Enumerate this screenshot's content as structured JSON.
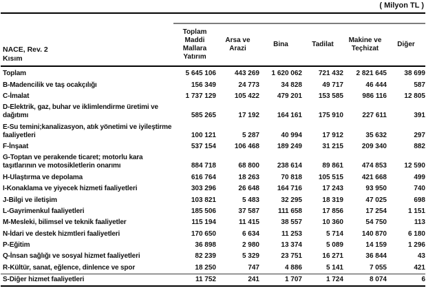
{
  "unit_label": "( Milyon TL )",
  "table": {
    "row_header": {
      "line1": "NACE, Rev. 2",
      "line2": "Kısım"
    },
    "columns": [
      "Toplam Maddi Mallara Yatırım",
      "Arsa ve Arazi",
      "Bina",
      "Tadilat",
      "Makine ve Teçhizat",
      "Diğer"
    ],
    "rows": [
      {
        "label": "Toplam",
        "values": [
          "5 645 106",
          "443 269",
          "1 620 062",
          "721 432",
          "2 821 645",
          "38 699"
        ]
      },
      {
        "label": "B-Madencilik ve taş ocakçılığı",
        "values": [
          "156 349",
          "24 773",
          "34 828",
          "49 717",
          "46 444",
          "587"
        ]
      },
      {
        "label": "C-İmalat",
        "values": [
          "1 737 129",
          "105 422",
          "479 201",
          "153 585",
          "986 116",
          "12 805"
        ]
      },
      {
        "label": "D-Elektrik, gaz, buhar ve iklimlendirme üretimi ve dağıtımı",
        "values": [
          "585 265",
          "17 192",
          "164 161",
          "175 910",
          "227 611",
          "391"
        ]
      },
      {
        "label": "E-Su temini;kanalizasyon, atık yönetimi ve iyileştirme faaliyetleri",
        "values": [
          "100 121",
          "5 287",
          "40 994",
          "17 912",
          "35 632",
          "297"
        ]
      },
      {
        "label": "F-İnşaat",
        "values": [
          "537 154",
          "106 468",
          "189 249",
          "31 215",
          "209 340",
          "882"
        ]
      },
      {
        "label": "G-Toptan ve perakende ticaret; motorlu kara taşıtlarının ve motosikletlerin onarımı",
        "values": [
          "884 718",
          "68 800",
          "238 614",
          "89 861",
          "474 853",
          "12 590"
        ]
      },
      {
        "label": "H-Ulaştırma ve depolama",
        "values": [
          "616 764",
          "18 263",
          "70 818",
          "105 515",
          "421 668",
          "499"
        ]
      },
      {
        "label": "I-Konaklama ve yiyecek hizmeti faaliyetleri",
        "values": [
          "303 296",
          "26 648",
          "164 716",
          "17 243",
          "93 950",
          "740"
        ]
      },
      {
        "label": "J-Bilgi ve iletişim",
        "values": [
          "103 821",
          "5 483",
          "32 295",
          "18 319",
          "47 025",
          "698"
        ]
      },
      {
        "label": "L-Gayrimenkul faaliyetleri",
        "values": [
          "185 506",
          "37 587",
          "111 658",
          "17 856",
          "17 254",
          "1 151"
        ]
      },
      {
        "label": "M-Mesleki, bilimsel ve teknik faaliyetler",
        "values": [
          "115 194",
          "11 415",
          "38 557",
          "10 360",
          "54 750",
          "113"
        ]
      },
      {
        "label": "N-İdari ve destek hizmtleri faaliyetleri",
        "values": [
          "170 650",
          "6 634",
          "11 253",
          "5 714",
          "140 870",
          "6 180"
        ]
      },
      {
        "label": "P-Eğitim",
        "values": [
          "36 898",
          "2 980",
          "13 374",
          "5 089",
          "14 159",
          "1 296"
        ]
      },
      {
        "label": "Q-İnsan sağlığı ve sosyal hizmet faaliyetleri",
        "values": [
          "82 239",
          "5 329",
          "23 751",
          "16 271",
          "36 844",
          "43"
        ]
      },
      {
        "label": "R-Kültür, sanat, eğlence, dinlence ve spor",
        "values": [
          "18 250",
          "747",
          "4 886",
          "5 141",
          "7 055",
          "421"
        ]
      },
      {
        "label": "S-Diğer hizmet faaliyetleri",
        "values": [
          "11 752",
          "241",
          "1 707",
          "1 724",
          "8 074",
          "6"
        ]
      }
    ]
  }
}
